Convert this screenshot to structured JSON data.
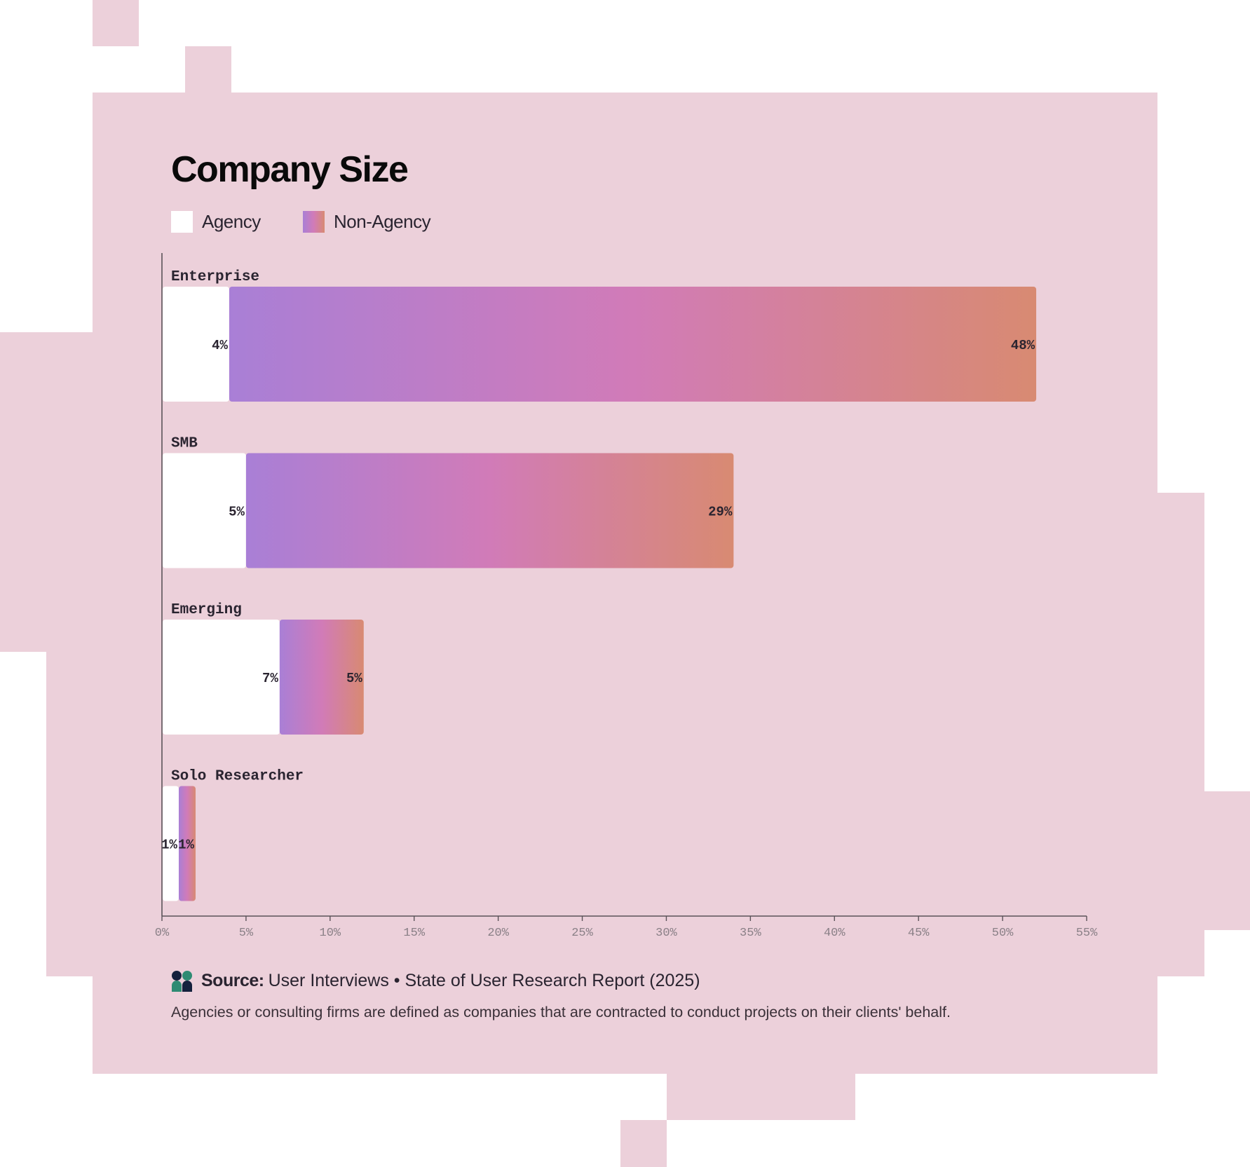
{
  "colors": {
    "background": "#ecd0da",
    "agency": "#ffffff",
    "non_agency_gradient": [
      "#a97fd6",
      "#d17bb8",
      "#d88a72"
    ]
  },
  "chart_data": {
    "type": "bar",
    "orientation": "horizontal",
    "stacked": true,
    "title": "Company Size",
    "categories": [
      "Enterprise",
      "SMB",
      "Emerging",
      "Solo Researcher"
    ],
    "series": [
      {
        "name": "Agency",
        "values": [
          4,
          5,
          7,
          1
        ]
      },
      {
        "name": "Non-Agency",
        "values": [
          48,
          29,
          5,
          1
        ]
      }
    ],
    "value_labels": {
      "Agency": [
        "4%",
        "5%",
        "7%",
        "1%"
      ],
      "Non-Agency": [
        "48%",
        "29%",
        "5%",
        "1%"
      ]
    },
    "xlim": [
      0,
      55
    ],
    "xticks": [
      "0%",
      "5%",
      "10%",
      "15%",
      "20%",
      "25%",
      "30%",
      "35%",
      "40%",
      "45%",
      "50%",
      "55%"
    ],
    "legend_position": "top-left",
    "grid": false
  },
  "footer": {
    "source_label": "Source:",
    "source_text": "User Interviews • State of User Research Report (2025)",
    "note": "Agencies or consulting firms are defined as companies that are contracted to conduct projects on their clients' behalf."
  }
}
